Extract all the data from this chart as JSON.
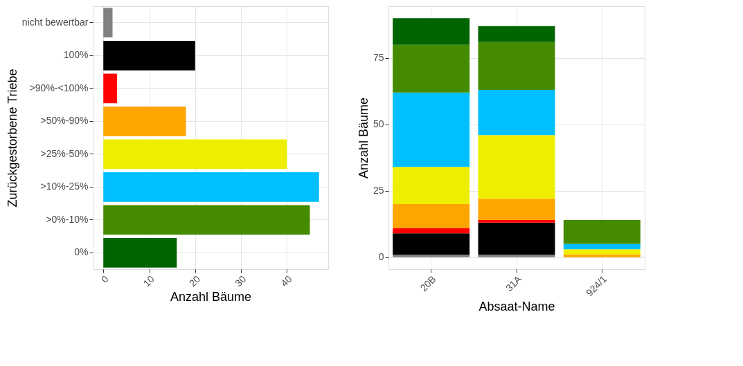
{
  "chart_data": [
    {
      "type": "bar",
      "orientation": "horizontal",
      "xlabel": "Anzahl Bäume",
      "ylabel": "Zurückgestorbene Triebe",
      "categories": [
        "nicht bewertbar",
        "100%",
        ">90%-<100%",
        ">50%-90%",
        ">25%-50%",
        ">10%-25%",
        ">0%-10%",
        "0%"
      ],
      "values": [
        2,
        20,
        3,
        18,
        40,
        47,
        45,
        16
      ],
      "colors": [
        "#808080",
        "#000000",
        "#ff0000",
        "#ffa500",
        "#eeee00",
        "#00bfff",
        "#458b00",
        "#006400"
      ],
      "xlim": [
        -2.3,
        49
      ],
      "xticks": [
        0,
        10,
        20,
        30,
        40
      ],
      "grid": true
    },
    {
      "type": "bar",
      "stacked": true,
      "xlabel": "Absaat-Name",
      "ylabel": "Anzahl Bäume",
      "categories": [
        "20B",
        "31A",
        "924/1"
      ],
      "series": [
        {
          "color": "#808080",
          "values": [
            1,
            1,
            0
          ]
        },
        {
          "color": "#000000",
          "values": [
            8,
            12,
            0
          ]
        },
        {
          "color": "#ff0000",
          "values": [
            2,
            1,
            0
          ]
        },
        {
          "color": "#ffa500",
          "values": [
            9,
            8,
            1
          ]
        },
        {
          "color": "#eeee00",
          "values": [
            14,
            24,
            2
          ]
        },
        {
          "color": "#00bfff",
          "values": [
            28,
            17,
            2
          ]
        },
        {
          "color": "#458b00",
          "values": [
            18,
            18,
            9
          ]
        },
        {
          "color": "#006400",
          "values": [
            10,
            6,
            0
          ]
        }
      ],
      "ylim": [
        -4.5,
        94.5
      ],
      "yticks": [
        0,
        25,
        50,
        75
      ],
      "grid": true
    }
  ]
}
